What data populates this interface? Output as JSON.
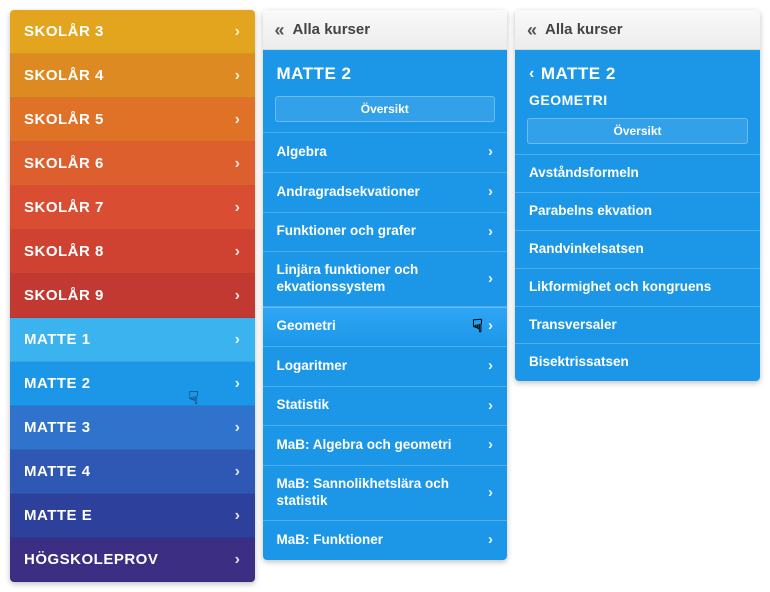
{
  "col1": {
    "items": [
      {
        "label": "SKOLÅR 3",
        "bg": "#e3a51d"
      },
      {
        "label": "SKOLÅR 4",
        "bg": "#de8a22"
      },
      {
        "label": "SKOLÅR 5",
        "bg": "#df7227"
      },
      {
        "label": "SKOLÅR 6",
        "bg": "#de5f2e"
      },
      {
        "label": "SKOLÅR 7",
        "bg": "#d94e32"
      },
      {
        "label": "SKOLÅR 8",
        "bg": "#cf4231"
      },
      {
        "label": "SKOLÅR 9",
        "bg": "#c23931"
      },
      {
        "label": "MATTE 1",
        "bg": "#3ab3ef"
      },
      {
        "label": "MATTE 2",
        "bg": "#1c97e8"
      },
      {
        "label": "MATTE 3",
        "bg": "#2f73cd"
      },
      {
        "label": "MATTE 4",
        "bg": "#2e58b4"
      },
      {
        "label": "MATTE E",
        "bg": "#2d419c"
      },
      {
        "label": "HÖGSKOLEPROV",
        "bg": "#3c2e83"
      }
    ],
    "chevron": "›"
  },
  "col2": {
    "back_glyph": "«",
    "header": "Alla kurser",
    "title": "MATTE 2",
    "overview": "Översikt",
    "items": [
      {
        "label": "Algebra"
      },
      {
        "label": "Andragradsekvationer"
      },
      {
        "label": "Funktioner och grafer"
      },
      {
        "label": "Linjära funktioner och ekvationssystem"
      },
      {
        "label": "Geometri",
        "hover": true
      },
      {
        "label": "Logaritmer"
      },
      {
        "label": "Statistik"
      },
      {
        "label": "MaB: Algebra och geometri"
      },
      {
        "label": "MaB: Sannolikhetslära och statistik"
      },
      {
        "label": "MaB: Funktioner"
      }
    ],
    "chevron": "›",
    "body_bg": "#1c97e8"
  },
  "col3": {
    "back_glyph": "«",
    "header": "Alla kurser",
    "parent_back": "‹",
    "parent_title": "MATTE 2",
    "subhead": "GEOMETRI",
    "overview": "Översikt",
    "items": [
      {
        "label": "Avståndsformeln"
      },
      {
        "label": "Parabelns ekvation"
      },
      {
        "label": "Randvinkelsatsen"
      },
      {
        "label": "Likformighet och kongruens"
      },
      {
        "label": "Transversaler"
      },
      {
        "label": "Bisektrissatsen"
      }
    ],
    "body_bg": "#1c97e8"
  },
  "cursor_glyph": "☟"
}
